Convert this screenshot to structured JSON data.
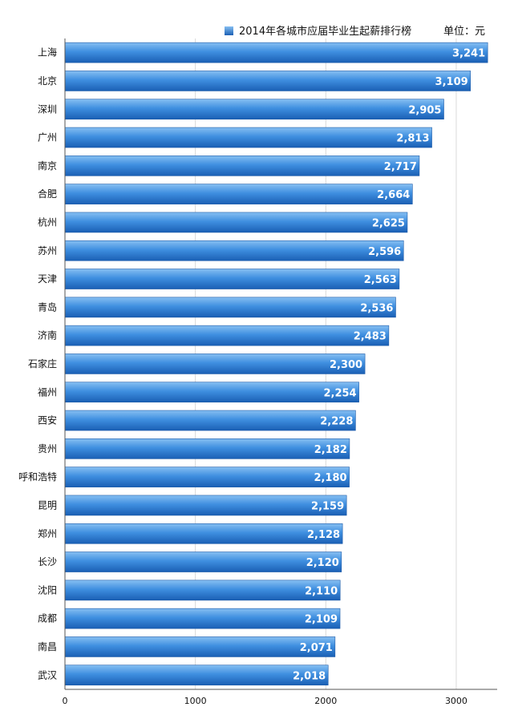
{
  "chart_data": {
    "type": "bar",
    "orientation": "horizontal",
    "legend": "2014年各城市应届毕业生起薪排行榜",
    "unit": "单位：元",
    "categories": [
      "上海",
      "北京",
      "深圳",
      "广州",
      "南京",
      "合肥",
      "杭州",
      "苏州",
      "天津",
      "青岛",
      "济南",
      "石家庄",
      "福州",
      "西安",
      "贵州",
      "呼和浩特",
      "昆明",
      "郑州",
      "长沙",
      "沈阳",
      "成都",
      "南昌",
      "武汉"
    ],
    "values": [
      3241,
      3109,
      2905,
      2813,
      2717,
      2664,
      2625,
      2596,
      2563,
      2536,
      2483,
      2300,
      2254,
      2228,
      2182,
      2180,
      2159,
      2128,
      2120,
      2110,
      2109,
      2071,
      2018
    ],
    "value_labels": [
      "3,241",
      "3,109",
      "2,905",
      "2,813",
      "2,717",
      "2,664",
      "2,625",
      "2,596",
      "2,563",
      "2,536",
      "2,483",
      "2,300",
      "2,254",
      "2,228",
      "2,182",
      "2,180",
      "2,159",
      "2,128",
      "2,120",
      "2,110",
      "2,109",
      "2,071",
      "2,018"
    ],
    "xticks": [
      0,
      1000,
      2000,
      3000
    ],
    "xtick_labels": [
      "0",
      "1000",
      "2000",
      "3000"
    ],
    "xlim": [
      0,
      3300
    ],
    "grid": true,
    "legend_position": "top-right",
    "bar_color": "#3a87d6"
  }
}
